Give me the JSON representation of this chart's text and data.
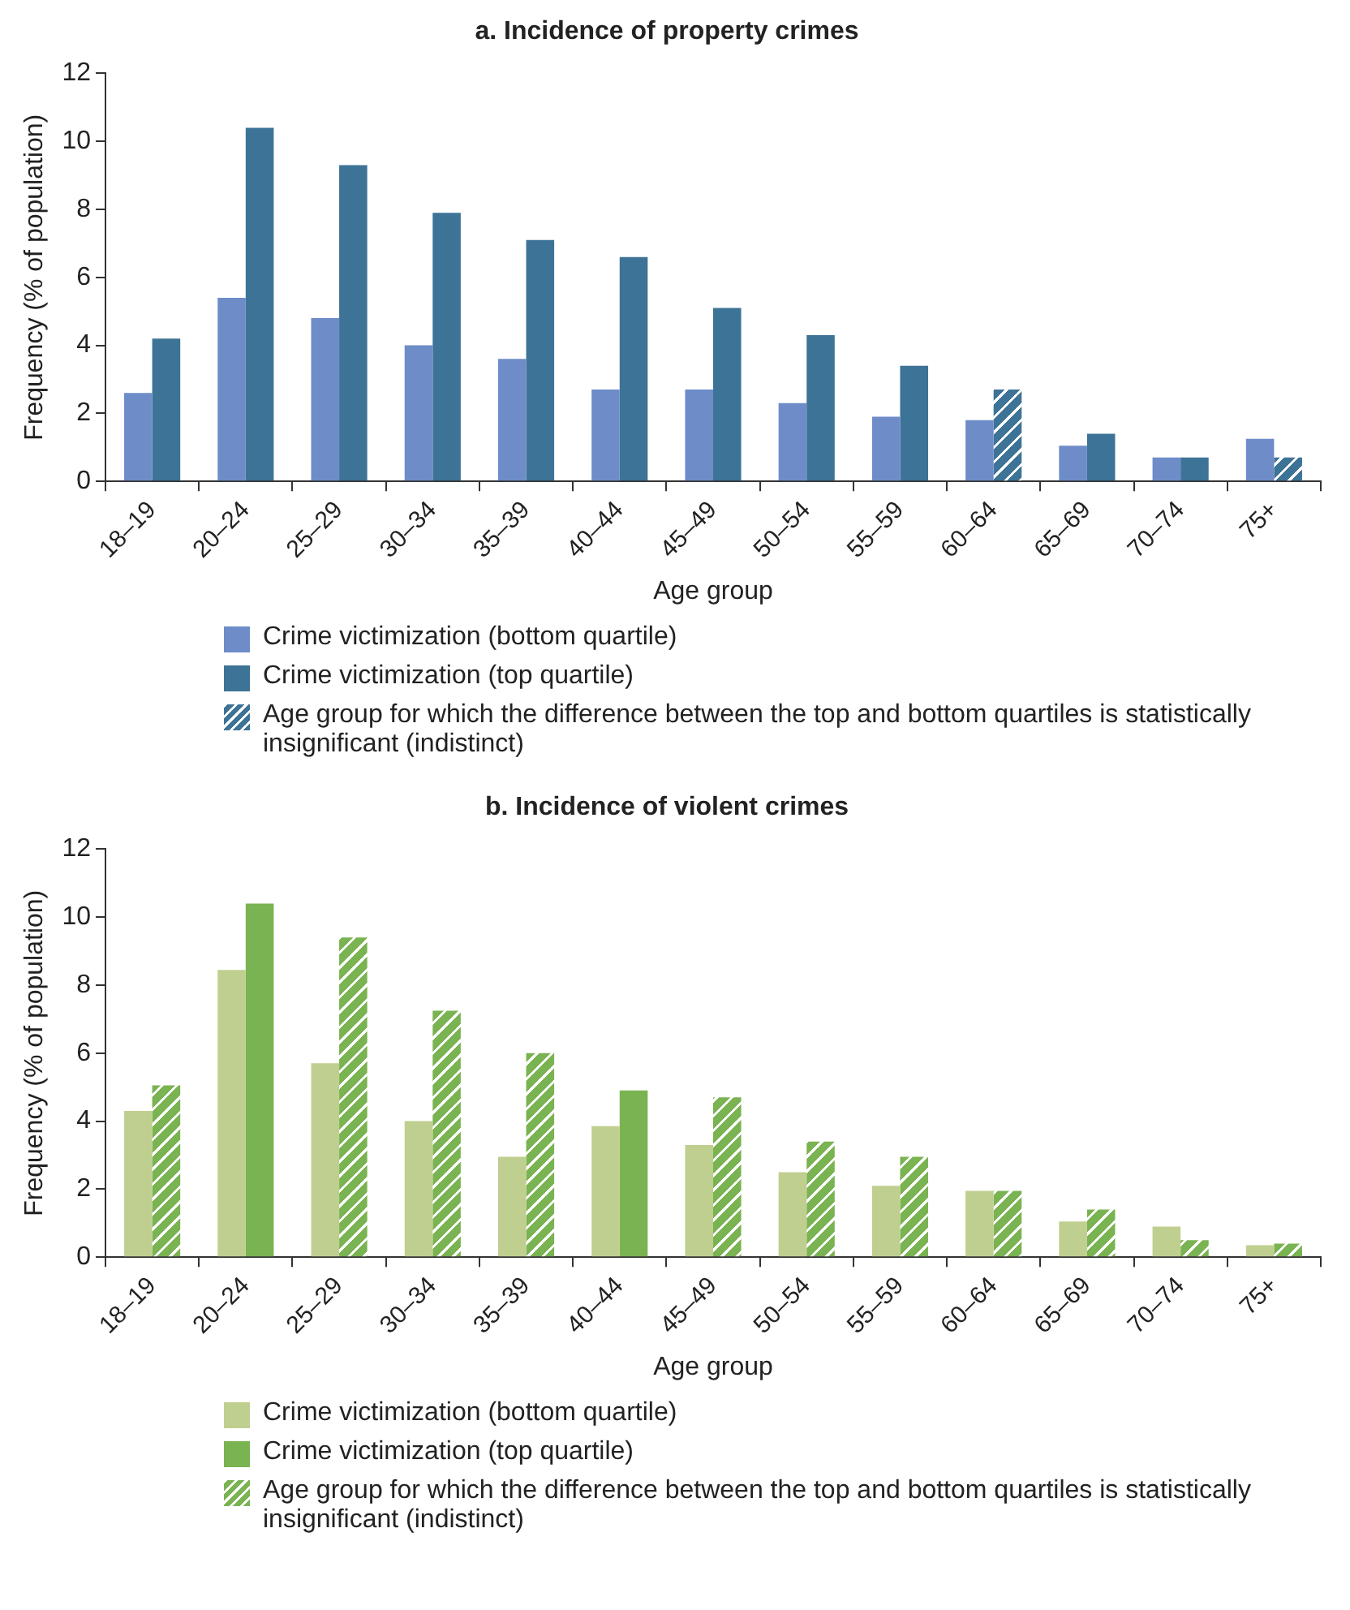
{
  "chart_data": [
    {
      "type": "bar",
      "title": "a. Incidence of property crimes",
      "xlabel": "Age group",
      "ylabel": "Frequency (% of population)",
      "categories": [
        "18–19",
        "20–24",
        "25–29",
        "30–34",
        "35–39",
        "40–44",
        "45–49",
        "50–54",
        "55–59",
        "60–64",
        "65–69",
        "70–74",
        "75+"
      ],
      "series": [
        {
          "name": "Crime victimization (bottom quartile)",
          "color": "#6d8cc8",
          "values": [
            2.6,
            5.4,
            4.8,
            4.0,
            3.6,
            2.7,
            2.7,
            2.3,
            1.9,
            1.8,
            1.05,
            0.7,
            1.25
          ]
        },
        {
          "name": "Crime victimization (top quartile)",
          "color": "#3d7396",
          "values": [
            4.2,
            10.4,
            9.3,
            7.9,
            7.1,
            6.6,
            5.1,
            4.3,
            3.4,
            null,
            1.4,
            0.7,
            null
          ]
        },
        {
          "name": "Age group for which the difference between the top and bottom quartiles is statistically insignificant (indistinct)",
          "color": "#3d7396",
          "values": [
            null,
            null,
            null,
            null,
            null,
            null,
            null,
            null,
            null,
            2.7,
            null,
            null,
            0.7
          ]
        }
      ],
      "ylim": [
        0,
        12
      ],
      "yticks": [
        0,
        2,
        4,
        6,
        8,
        10,
        12
      ],
      "grid": false,
      "legend": "bottom"
    },
    {
      "type": "bar",
      "title": "b. Incidence of violent crimes",
      "xlabel": "Age group",
      "ylabel": "Frequency (% of population)",
      "categories": [
        "18–19",
        "20–24",
        "25–29",
        "30–34",
        "35–39",
        "40–44",
        "45–49",
        "50–54",
        "55–59",
        "60–64",
        "65–69",
        "70–74",
        "75+"
      ],
      "series": [
        {
          "name": "Crime victimization (bottom quartile)",
          "color": "#bfcf8f",
          "values": [
            4.3,
            8.45,
            5.7,
            4.0,
            2.95,
            3.85,
            3.3,
            2.5,
            2.1,
            1.95,
            1.05,
            0.9,
            0.35
          ]
        },
        {
          "name": "Crime victimization (top quartile)",
          "color": "#7ab351",
          "values": [
            null,
            10.4,
            null,
            null,
            null,
            4.9,
            null,
            null,
            null,
            null,
            null,
            null,
            null
          ]
        },
        {
          "name": "Age group for which the difference between the top and bottom quartiles is statistically insignificant (indistinct)",
          "color": "#7ab351",
          "values": [
            5.05,
            null,
            9.4,
            7.25,
            6.0,
            null,
            4.7,
            3.4,
            2.95,
            1.95,
            1.4,
            0.5,
            0.4
          ]
        }
      ],
      "ylim": [
        0,
        12
      ],
      "yticks": [
        0,
        2,
        4,
        6,
        8,
        10,
        12
      ],
      "grid": false,
      "legend": "bottom"
    }
  ]
}
